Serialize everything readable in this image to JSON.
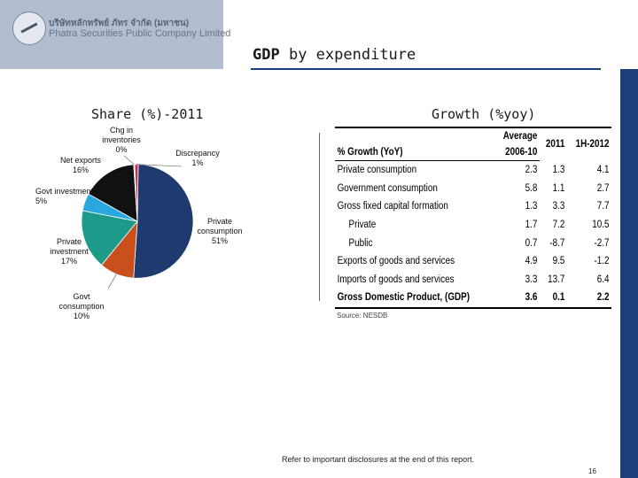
{
  "header": {
    "company_thai": "บริษัทหลักทรัพย์ ภัทร จำกัด (มหาชน)",
    "company_en": "Phatra Securities Public Company Limited"
  },
  "page_title_bold": "GDP",
  "page_title_rest": "by expenditure",
  "left_title": "Share (%)-2011",
  "right_title": "Growth (%yoy)",
  "colors": {
    "private": "#1f3a6e",
    "govt_consumption": "#c9501c",
    "private_investment": "#1d9a8a",
    "govt_investment": "#29a8e0",
    "net_exports": "#111111",
    "discrepancy": "#cc2a4c",
    "inventories": "#e8e8e8",
    "accent": "#1c3f7a"
  },
  "chart_data": [
    {
      "type": "pie",
      "title": "Share (%)-2011",
      "slices": [
        {
          "name": "Private consumption",
          "label": [
            "Private",
            "consumption",
            "51%"
          ],
          "value": 51
        },
        {
          "name": "Govt consumption",
          "label": [
            "Govt",
            "consumption",
            "10%"
          ],
          "value": 10
        },
        {
          "name": "Private investment",
          "label": [
            "Private",
            "investment",
            "17%"
          ],
          "value": 17
        },
        {
          "name": "Govt investment",
          "label": [
            "Govt investment",
            "5%"
          ],
          "value": 5
        },
        {
          "name": "Net exports",
          "label": [
            "Net exports",
            "16%"
          ],
          "value": 16
        },
        {
          "name": "Chg in inventories",
          "label": [
            "Chg in",
            "inventories",
            "0%"
          ],
          "value": 0.3
        },
        {
          "name": "Discrepancy",
          "label": [
            "Discrepancy",
            "1%"
          ],
          "value": 1
        }
      ]
    },
    {
      "type": "table",
      "title": "Growth (%yoy)",
      "header": {
        "label": "% Growth (YoY)",
        "avg_line1": "Average",
        "avg_line2": "2006-10",
        "y2011": "2011",
        "h1": "1H-2012"
      },
      "rows": [
        {
          "label": "Private consumption",
          "avg": "2.3",
          "y2011": "1.3",
          "h1": "4.1"
        },
        {
          "label": "Government consumption",
          "avg": "5.8",
          "y2011": "1.1",
          "h1": "2.7"
        },
        {
          "label": "Gross fixed capital formation",
          "avg": "1.3",
          "y2011": "3.3",
          "h1": "7.7"
        },
        {
          "label": "Private",
          "avg": "1.7",
          "y2011": "7.2",
          "h1": "10.5"
        },
        {
          "label": "Public",
          "avg": "0.7",
          "y2011": "-8.7",
          "h1": "-2.7"
        },
        {
          "label": "Exports of goods and services",
          "avg": "4.9",
          "y2011": "9.5",
          "h1": "-1.2"
        },
        {
          "label": "Imports of goods and services",
          "avg": "3.3",
          "y2011": "13.7",
          "h1": "6.4"
        },
        {
          "label": "Gross Domestic Product, (GDP)",
          "avg": "3.6",
          "y2011": "0.1",
          "h1": "2.2"
        }
      ],
      "source": "Source: NESDB"
    }
  ],
  "footer": {
    "disclaimer": "Refer to important disclosures at the end of this report.",
    "page_number": "16"
  }
}
